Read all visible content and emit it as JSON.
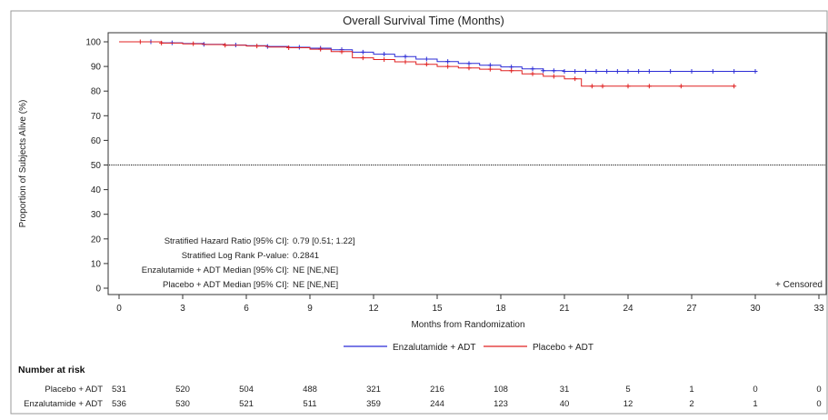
{
  "chart_data": {
    "type": "line",
    "title": "Overall Survival Time (Months)",
    "xlabel": "Months from Randomization",
    "ylabel": "Proportion of Subjects Alive (%)",
    "xlim": [
      0,
      33
    ],
    "ylim": [
      0,
      100
    ],
    "x_ticks": [
      0,
      3,
      6,
      9,
      12,
      15,
      18,
      21,
      24,
      27,
      30,
      33
    ],
    "y_ticks": [
      0,
      10,
      20,
      30,
      40,
      50,
      60,
      70,
      80,
      90,
      100
    ],
    "reference_line_y": 50,
    "legend_placement": "bottom",
    "censored_label": "+ Censored",
    "series": [
      {
        "name": "Enzalutamide + ADT",
        "color": "#2b2bd6",
        "x": [
          0,
          1,
          2,
          3,
          4,
          5,
          6,
          7,
          8,
          9,
          10,
          11,
          12,
          13,
          14,
          15,
          16,
          17,
          18,
          19,
          20,
          21,
          22,
          23,
          24,
          25,
          26,
          27,
          28,
          29,
          30
        ],
        "y": [
          100,
          100,
          99.6,
          99.3,
          99.0,
          98.7,
          98.4,
          98.1,
          97.8,
          97.4,
          96.8,
          95.8,
          95.0,
          94.0,
          93.0,
          92.0,
          91.2,
          90.5,
          89.8,
          89.0,
          88.3,
          88.0,
          88.0,
          88.0,
          88.0,
          88.0,
          88.0,
          88.0,
          88.0,
          88.0,
          88.0
        ],
        "censored_x": [
          1.5,
          2.5,
          4,
          5.5,
          7,
          8.5,
          9.5,
          10.5,
          11.5,
          12.5,
          13.5,
          14.5,
          15.5,
          16.5,
          17.5,
          18.5,
          19.5,
          20,
          20.5,
          21,
          21.5,
          22,
          22.5,
          23,
          23.5,
          24,
          24.5,
          25,
          26,
          27,
          28,
          29,
          30
        ]
      },
      {
        "name": "Placebo + ADT",
        "color": "#e02020",
        "x": [
          0,
          1,
          2,
          3,
          4,
          5,
          6,
          7,
          8,
          9,
          10,
          11,
          12,
          13,
          14,
          15,
          16,
          17,
          18,
          19,
          20,
          21,
          21.8,
          22,
          23,
          24,
          25,
          26,
          27,
          28,
          29
        ],
        "y": [
          100,
          100,
          99.5,
          99.2,
          98.9,
          98.6,
          98.3,
          97.9,
          97.6,
          97.0,
          96.0,
          93.5,
          92.8,
          91.9,
          90.9,
          90.0,
          89.4,
          88.9,
          88.3,
          87.0,
          86.0,
          85.0,
          82.0,
          82.0,
          82.0,
          82.0,
          82.0,
          82.0,
          82.0,
          82.0,
          82.0
        ],
        "censored_x": [
          1,
          2,
          3.5,
          5,
          6.5,
          8,
          9.5,
          10.5,
          11.5,
          12.5,
          13.5,
          14.5,
          15.5,
          16.5,
          17.5,
          18.5,
          19.5,
          20.5,
          21.5,
          22.3,
          22.8,
          24,
          25,
          26.5,
          29
        ]
      }
    ],
    "annotations": [
      {
        "label": "Stratified Hazard Ratio [95% CI]:",
        "value": "0.79 [0.51; 1.22]"
      },
      {
        "label": "Stratified Log Rank P-value:",
        "value": "0.2841"
      },
      {
        "label": "Enzalutamide + ADT Median [95% CI]:",
        "value": "NE [NE,NE]"
      },
      {
        "label": "Placebo + ADT Median [95% CI]:",
        "value": "NE [NE,NE]"
      }
    ],
    "risk_table": {
      "title": "Number at risk",
      "rows": [
        {
          "label": "Placebo + ADT",
          "values": [
            531,
            520,
            504,
            488,
            321,
            216,
            108,
            31,
            5,
            1,
            0,
            0
          ]
        },
        {
          "label": "Enzalutamide + ADT",
          "values": [
            536,
            530,
            521,
            511,
            359,
            244,
            123,
            40,
            12,
            2,
            1,
            0
          ]
        }
      ]
    }
  }
}
